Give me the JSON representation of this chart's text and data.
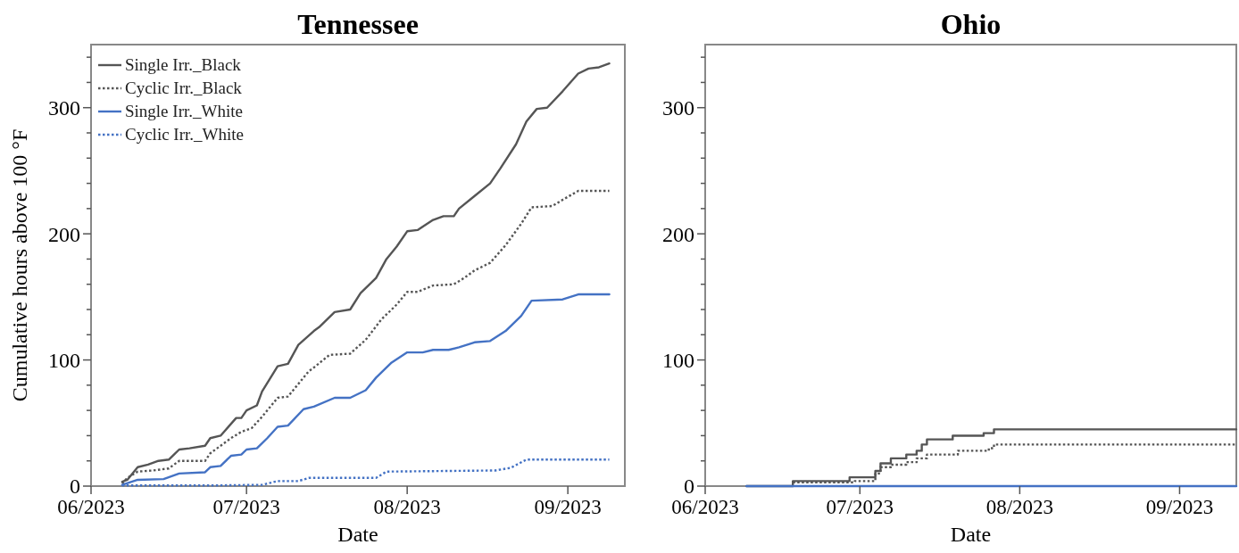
{
  "chart_data": [
    {
      "type": "line",
      "title": "Tennessee",
      "xlabel": "Date",
      "ylabel": "Cumulative hours above 100 °F",
      "xlim": [
        "2023-06-01",
        "2023-09-12"
      ],
      "ylim": [
        0,
        350
      ],
      "xticks": [
        {
          "value": "2023-06-01",
          "label": "06/2023"
        },
        {
          "value": "2023-07-01",
          "label": "07/2023"
        },
        {
          "value": "2023-08-01",
          "label": "08/2023"
        },
        {
          "value": "2023-09-01",
          "label": "09/2023"
        }
      ],
      "yticks": [
        0,
        {
          "value": 20,
          "label": null
        },
        {
          "value": 40,
          "label": null
        },
        {
          "value": 60,
          "label": null
        },
        {
          "value": 80,
          "label": null
        },
        100,
        {
          "value": 120,
          "label": null
        },
        {
          "value": 140,
          "label": null
        },
        {
          "value": 160,
          "label": null
        },
        {
          "value": 180,
          "label": null
        },
        200,
        {
          "value": 220,
          "label": null
        },
        {
          "value": 240,
          "label": null
        },
        {
          "value": 260,
          "label": null
        },
        {
          "value": 280,
          "label": null
        },
        300,
        {
          "value": 320,
          "label": null
        },
        {
          "value": 340,
          "label": null
        }
      ],
      "grid": false,
      "legend": "top left",
      "series": [
        {
          "name": "Single Irr._Black",
          "color": "#555555",
          "line_style": "solid",
          "x": [
            "2023-06-07",
            "2023-06-08",
            "2023-06-10",
            "2023-06-12",
            "2023-06-14",
            "2023-06-16",
            "2023-06-18",
            "2023-06-20",
            "2023-06-23",
            "2023-06-24",
            "2023-06-26",
            "2023-06-29",
            "2023-06-30",
            "2023-07-01",
            "2023-07-03",
            "2023-07-04",
            "2023-07-07",
            "2023-07-09",
            "2023-07-11",
            "2023-07-14",
            "2023-07-15",
            "2023-07-18",
            "2023-07-21",
            "2023-07-23",
            "2023-07-26",
            "2023-07-28",
            "2023-07-30",
            "2023-08-01",
            "2023-08-03",
            "2023-08-06",
            "2023-08-08",
            "2023-08-10",
            "2023-08-11",
            "2023-08-14",
            "2023-08-17",
            "2023-08-19",
            "2023-08-22",
            "2023-08-24",
            "2023-08-26",
            "2023-08-28",
            "2023-08-31",
            "2023-09-03",
            "2023-09-05",
            "2023-09-07",
            "2023-09-09"
          ],
          "values": [
            3.5,
            5,
            15,
            17,
            20,
            21,
            29,
            30,
            32,
            38,
            40,
            54,
            54,
            60,
            64,
            75,
            95,
            97,
            112,
            123,
            126,
            138,
            140,
            153,
            165,
            180,
            190,
            202,
            203,
            211,
            214,
            214,
            220,
            230,
            240,
            252,
            271,
            289,
            299,
            300,
            313,
            327,
            331,
            332,
            335
          ]
        },
        {
          "name": "Cyclic Irr._Black",
          "color": "#555555",
          "line_style": "dotted",
          "x": [
            "2023-06-07",
            "2023-06-08",
            "2023-06-10",
            "2023-06-13",
            "2023-06-16",
            "2023-06-18",
            "2023-06-23",
            "2023-06-24",
            "2023-06-28",
            "2023-06-30",
            "2023-07-02",
            "2023-07-04",
            "2023-07-07",
            "2023-07-09",
            "2023-07-13",
            "2023-07-14",
            "2023-07-17",
            "2023-07-21",
            "2023-07-24",
            "2023-07-27",
            "2023-07-30",
            "2023-08-01",
            "2023-08-03",
            "2023-08-06",
            "2023-08-10",
            "2023-08-12",
            "2023-08-14",
            "2023-08-17",
            "2023-08-20",
            "2023-08-23",
            "2023-08-25",
            "2023-08-29",
            "2023-08-31",
            "2023-09-03",
            "2023-09-09"
          ],
          "values": [
            2,
            6.5,
            11.5,
            12.4,
            14,
            20,
            20,
            26,
            38,
            43,
            46,
            55,
            70,
            71,
            91,
            94,
            104,
            105,
            116,
            132,
            144,
            154,
            154,
            159,
            160,
            165,
            171,
            177,
            191,
            208,
            221,
            222,
            227,
            234,
            234
          ]
        },
        {
          "name": "Single Irr._White",
          "color": "#4472c4",
          "line_style": "solid",
          "x": [
            "2023-06-07",
            "2023-06-10",
            "2023-06-15",
            "2023-06-18",
            "2023-06-23",
            "2023-06-24",
            "2023-06-26",
            "2023-06-28",
            "2023-06-30",
            "2023-07-01",
            "2023-07-03",
            "2023-07-05",
            "2023-07-07",
            "2023-07-09",
            "2023-07-12",
            "2023-07-14",
            "2023-07-18",
            "2023-07-21",
            "2023-07-24",
            "2023-07-26",
            "2023-07-29",
            "2023-08-01",
            "2023-08-04",
            "2023-08-06",
            "2023-08-09",
            "2023-08-11",
            "2023-08-14",
            "2023-08-17",
            "2023-08-20",
            "2023-08-23",
            "2023-08-25",
            "2023-08-31",
            "2023-09-03",
            "2023-09-09"
          ],
          "values": [
            1,
            5,
            5.6,
            10,
            11,
            15,
            16,
            24,
            25,
            29,
            30,
            38,
            47,
            48,
            61,
            63,
            70,
            70,
            76,
            86,
            98,
            106,
            106,
            108,
            108,
            110,
            114,
            115,
            123,
            135,
            147,
            148,
            152,
            152
          ]
        },
        {
          "name": "Cyclic Irr._White",
          "color": "#4472c4",
          "line_style": "dotted",
          "x": [
            "2023-06-07",
            "2023-06-24",
            "2023-07-04",
            "2023-07-07",
            "2023-07-11",
            "2023-07-13",
            "2023-07-26",
            "2023-07-28",
            "2023-08-18",
            "2023-08-21",
            "2023-08-24",
            "2023-09-09"
          ],
          "values": [
            0.5,
            0.5,
            1,
            4,
            4,
            6.5,
            6.5,
            11.5,
            12.4,
            14.5,
            21,
            21
          ]
        }
      ]
    },
    {
      "type": "step",
      "title": "Ohio",
      "xlabel": "Date",
      "xlim": [
        "2023-06-01",
        "2023-09-12"
      ],
      "ylim": [
        0,
        350
      ],
      "xticks": [
        {
          "value": "2023-06-01",
          "label": "06/2023"
        },
        {
          "value": "2023-07-01",
          "label": "07/2023"
        },
        {
          "value": "2023-08-01",
          "label": "08/2023"
        },
        {
          "value": "2023-09-01",
          "label": "09/2023"
        }
      ],
      "yticks": [
        0,
        {
          "value": 20,
          "label": null
        },
        {
          "value": 40,
          "label": null
        },
        {
          "value": 60,
          "label": null
        },
        {
          "value": 80,
          "label": null
        },
        100,
        {
          "value": 120,
          "label": null
        },
        {
          "value": 140,
          "label": null
        },
        {
          "value": 160,
          "label": null
        },
        {
          "value": 180,
          "label": null
        },
        200,
        {
          "value": 220,
          "label": null
        },
        {
          "value": 240,
          "label": null
        },
        {
          "value": 260,
          "label": null
        },
        {
          "value": 280,
          "label": null
        },
        300,
        {
          "value": 320,
          "label": null
        },
        {
          "value": 340,
          "label": null
        }
      ],
      "grid": false,
      "series": [
        {
          "color": "#555555",
          "line_style": "solid",
          "x": [
            "2023-06-09",
            "2023-06-18",
            "2023-06-29",
            "2023-07-04",
            "2023-07-05",
            "2023-07-07",
            "2023-07-10",
            "2023-07-12",
            "2023-07-13",
            "2023-07-14",
            "2023-07-19",
            "2023-07-25",
            "2023-07-27",
            "2023-09-12"
          ],
          "values": [
            0,
            4,
            7,
            12,
            18,
            22,
            25,
            28,
            33,
            37,
            40,
            42,
            45,
            45
          ]
        },
        {
          "color": "#555555",
          "line_style": "dotted",
          "x": [
            "2023-06-18",
            "2023-06-30",
            "2023-07-04",
            "2023-07-05",
            "2023-07-07",
            "2023-07-10",
            "2023-07-12",
            "2023-07-14",
            "2023-07-20",
            "2023-07-26",
            "2023-07-27",
            "2023-09-12"
          ],
          "values": [
            3,
            4,
            10,
            15,
            17,
            19,
            22,
            25,
            28,
            30,
            33,
            33
          ]
        },
        {
          "color": "#4472c4",
          "line_style": "solid",
          "x": [
            "2023-06-09",
            "2023-09-12"
          ],
          "values": [
            0,
            0
          ]
        }
      ]
    }
  ]
}
